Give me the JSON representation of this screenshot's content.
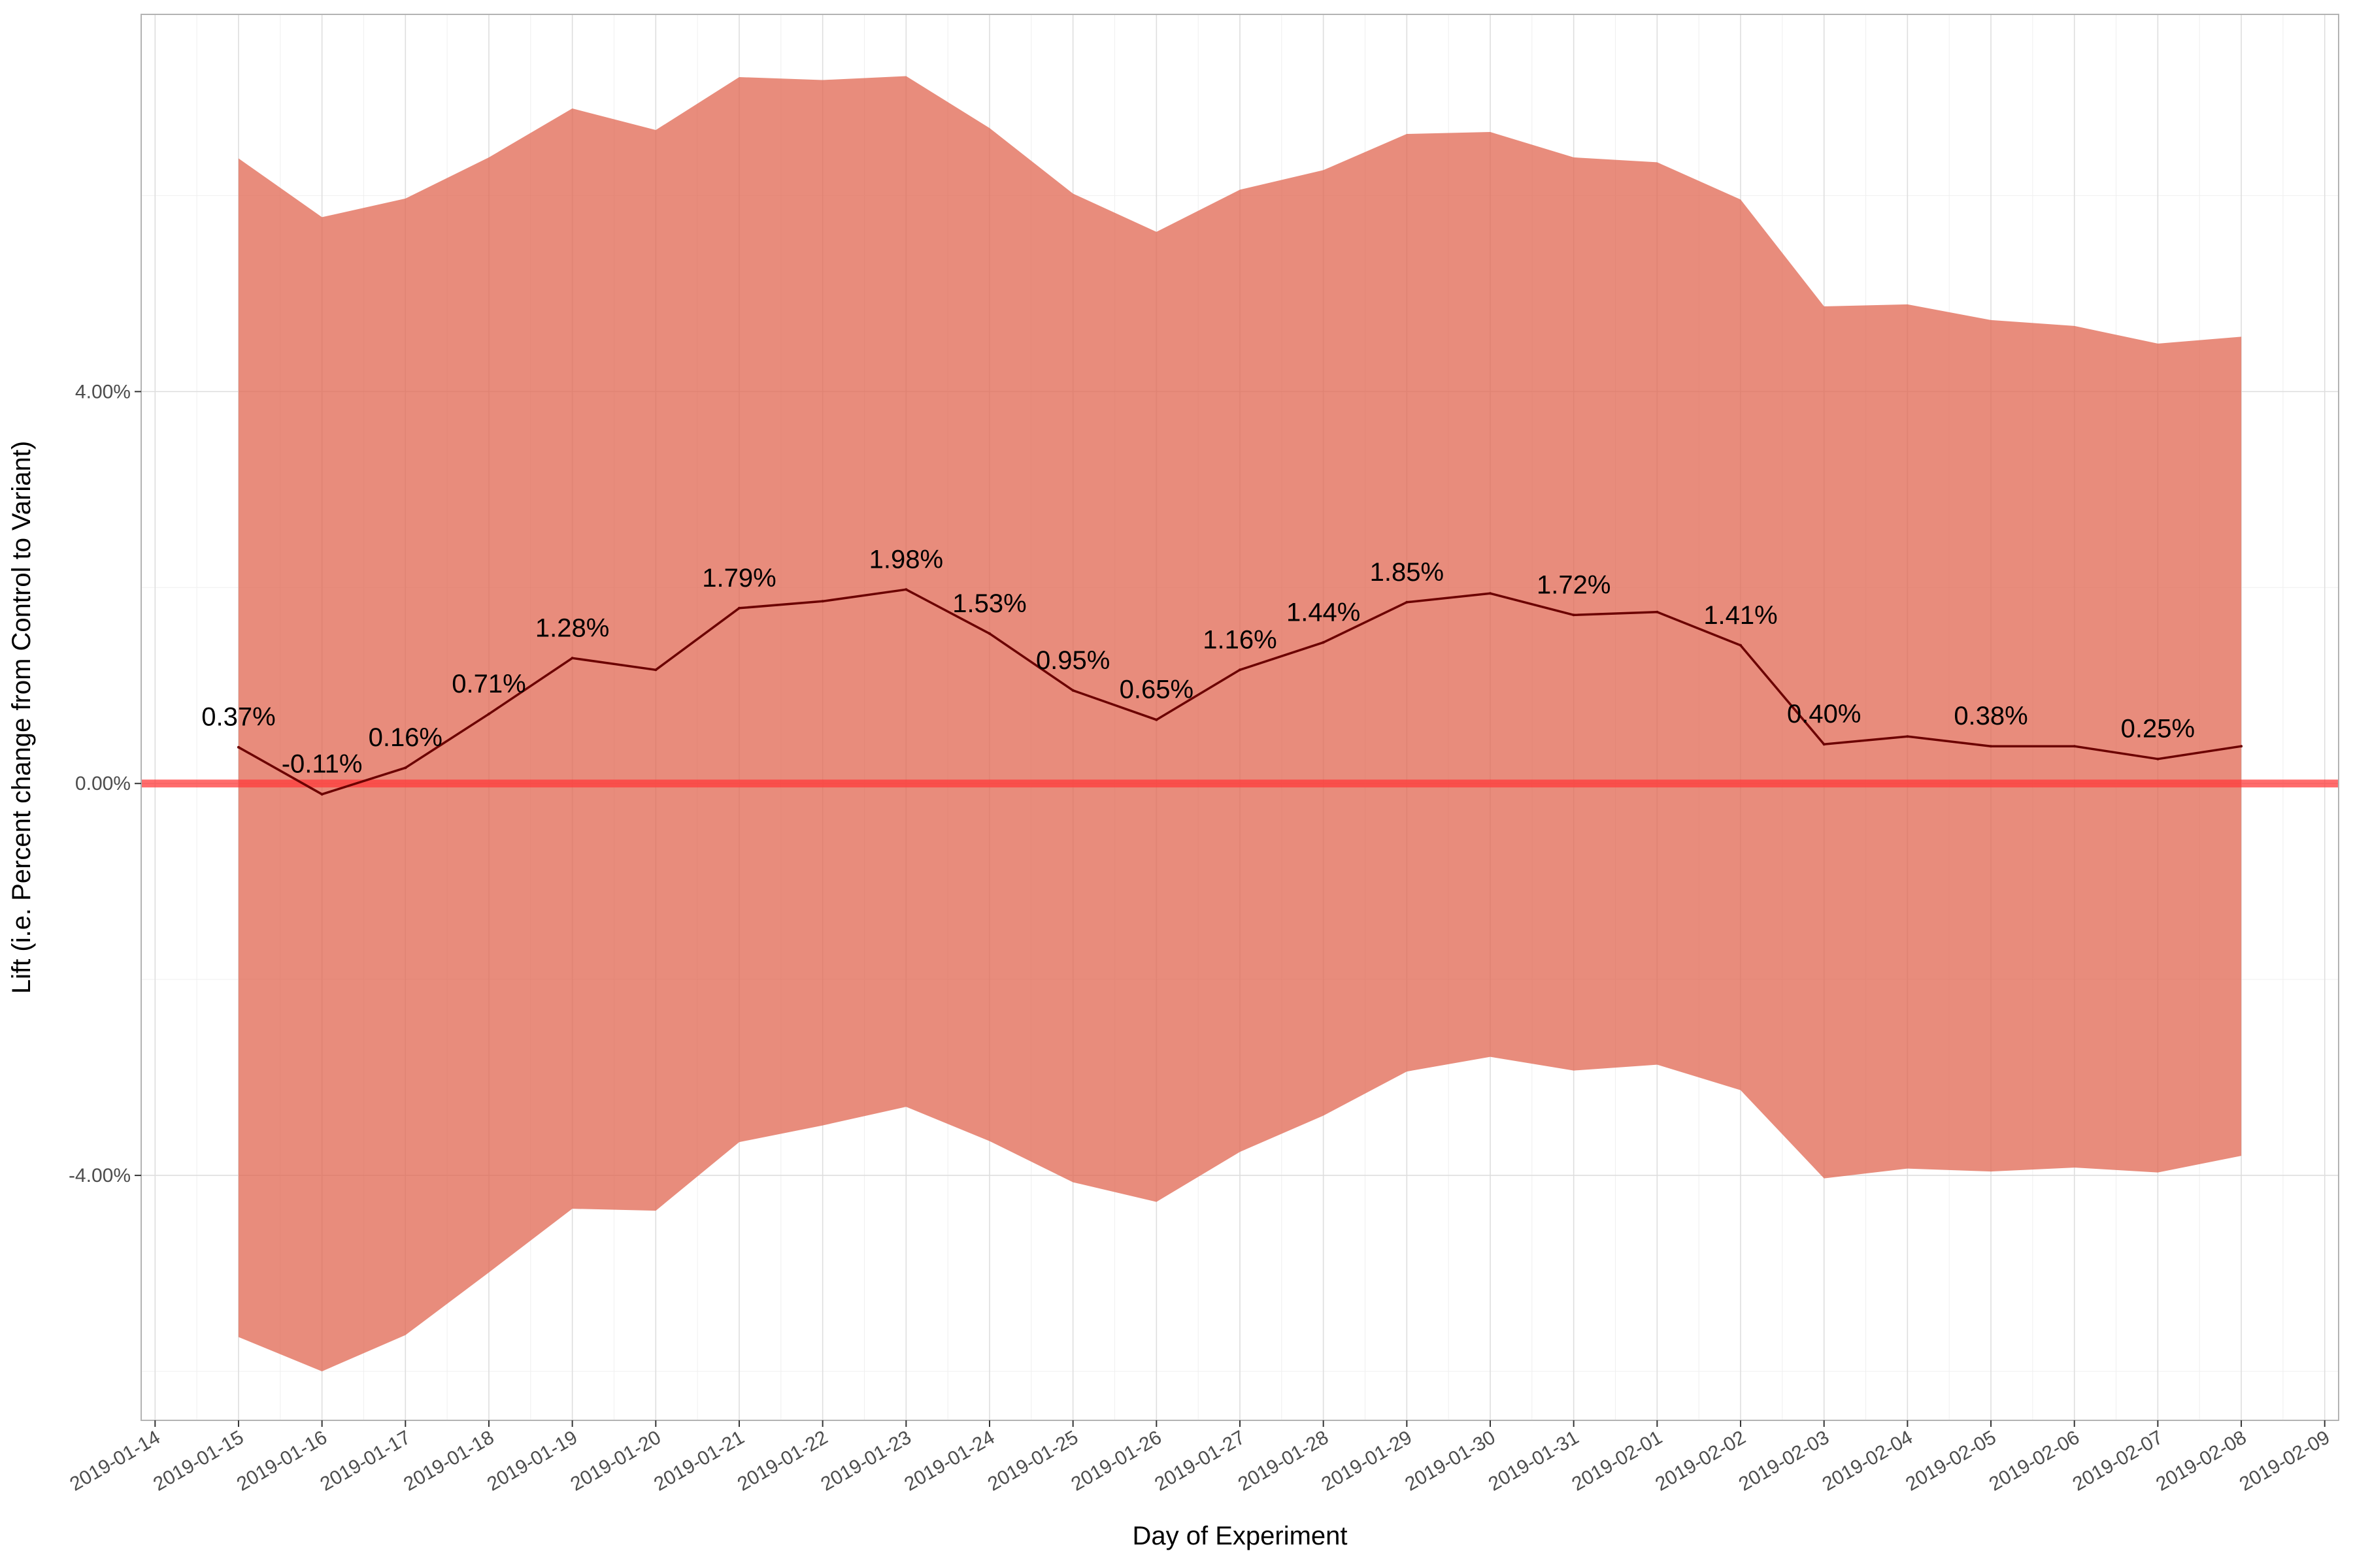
{
  "chart_data": {
    "type": "line",
    "title": "",
    "xlabel": "Day of Experiment",
    "ylabel": "Lift (i.e. Percent change from Control to Variant)",
    "x_tick_labels": [
      "2019-01-14",
      "2019-01-15",
      "2019-01-16",
      "2019-01-17",
      "2019-01-18",
      "2019-01-19",
      "2019-01-20",
      "2019-01-21",
      "2019-01-22",
      "2019-01-23",
      "2019-01-24",
      "2019-01-25",
      "2019-01-26",
      "2019-01-27",
      "2019-01-28",
      "2019-01-29",
      "2019-01-30",
      "2019-01-31",
      "2019-02-01",
      "2019-02-02",
      "2019-02-03",
      "2019-02-04",
      "2019-02-05",
      "2019-02-06",
      "2019-02-07",
      "2019-02-08",
      "2019-02-09"
    ],
    "y_ticks": [
      -4,
      0,
      4
    ],
    "y_tick_labels": [
      "-4.00%",
      "0.00%",
      "4.00%"
    ],
    "xlim": [
      "2019-01-13T20:00",
      "2019-02-09T04:00"
    ],
    "ylim": [
      -6.5,
      7.85
    ],
    "grid": true,
    "reference_line": {
      "y": 0,
      "color": "#ff3b3b"
    },
    "band_color": "#e06650",
    "line_color": "#6b0000",
    "series": [
      {
        "x": [
          "2019-01-15",
          "2019-01-16",
          "2019-01-17",
          "2019-01-18",
          "2019-01-19",
          "2019-01-20",
          "2019-01-21",
          "2019-01-22",
          "2019-01-23",
          "2019-01-24",
          "2019-01-25",
          "2019-01-26",
          "2019-01-27",
          "2019-01-28",
          "2019-01-29",
          "2019-01-30",
          "2019-01-31",
          "2019-02-01",
          "2019-02-02",
          "2019-02-03",
          "2019-02-04",
          "2019-02-05",
          "2019-02-06",
          "2019-02-07",
          "2019-02-08"
        ],
        "lift": [
          0.37,
          -0.11,
          0.16,
          0.71,
          1.28,
          1.16,
          1.79,
          1.86,
          1.98,
          1.53,
          0.95,
          0.65,
          1.16,
          1.44,
          1.85,
          1.94,
          1.72,
          1.75,
          1.41,
          0.4,
          0.48,
          0.38,
          0.38,
          0.25,
          0.38
        ],
        "upper": [
          6.38,
          5.78,
          5.97,
          6.39,
          6.89,
          6.67,
          7.21,
          7.18,
          7.22,
          6.69,
          6.02,
          5.63,
          6.06,
          6.26,
          6.63,
          6.65,
          6.39,
          6.34,
          5.96,
          4.87,
          4.89,
          4.73,
          4.67,
          4.49,
          4.56
        ],
        "lower": [
          -5.65,
          -6.0,
          -5.63,
          -4.99,
          -4.34,
          -4.36,
          -3.66,
          -3.49,
          -3.3,
          -3.65,
          -4.07,
          -4.27,
          -3.76,
          -3.39,
          -2.94,
          -2.79,
          -2.93,
          -2.87,
          -3.13,
          -4.03,
          -3.93,
          -3.96,
          -3.92,
          -3.97,
          -3.8
        ]
      }
    ],
    "data_labels": [
      {
        "x": "2019-01-15",
        "text": "0.37%"
      },
      {
        "x": "2019-01-16",
        "text": "-0.11%"
      },
      {
        "x": "2019-01-17",
        "text": "0.16%"
      },
      {
        "x": "2019-01-18",
        "text": "0.71%"
      },
      {
        "x": "2019-01-19",
        "text": "1.28%"
      },
      {
        "x": "2019-01-21",
        "text": "1.79%"
      },
      {
        "x": "2019-01-23",
        "text": "1.98%"
      },
      {
        "x": "2019-01-24",
        "text": "1.53%"
      },
      {
        "x": "2019-01-25",
        "text": "0.95%"
      },
      {
        "x": "2019-01-26",
        "text": "0.65%"
      },
      {
        "x": "2019-01-27",
        "text": "1.16%"
      },
      {
        "x": "2019-01-28",
        "text": "1.44%"
      },
      {
        "x": "2019-01-29",
        "text": "1.85%"
      },
      {
        "x": "2019-01-31",
        "text": "1.72%"
      },
      {
        "x": "2019-02-02",
        "text": "1.41%"
      },
      {
        "x": "2019-02-03",
        "text": "0.40%"
      },
      {
        "x": "2019-02-05",
        "text": "0.38%"
      },
      {
        "x": "2019-02-07",
        "text": "0.25%"
      }
    ]
  }
}
